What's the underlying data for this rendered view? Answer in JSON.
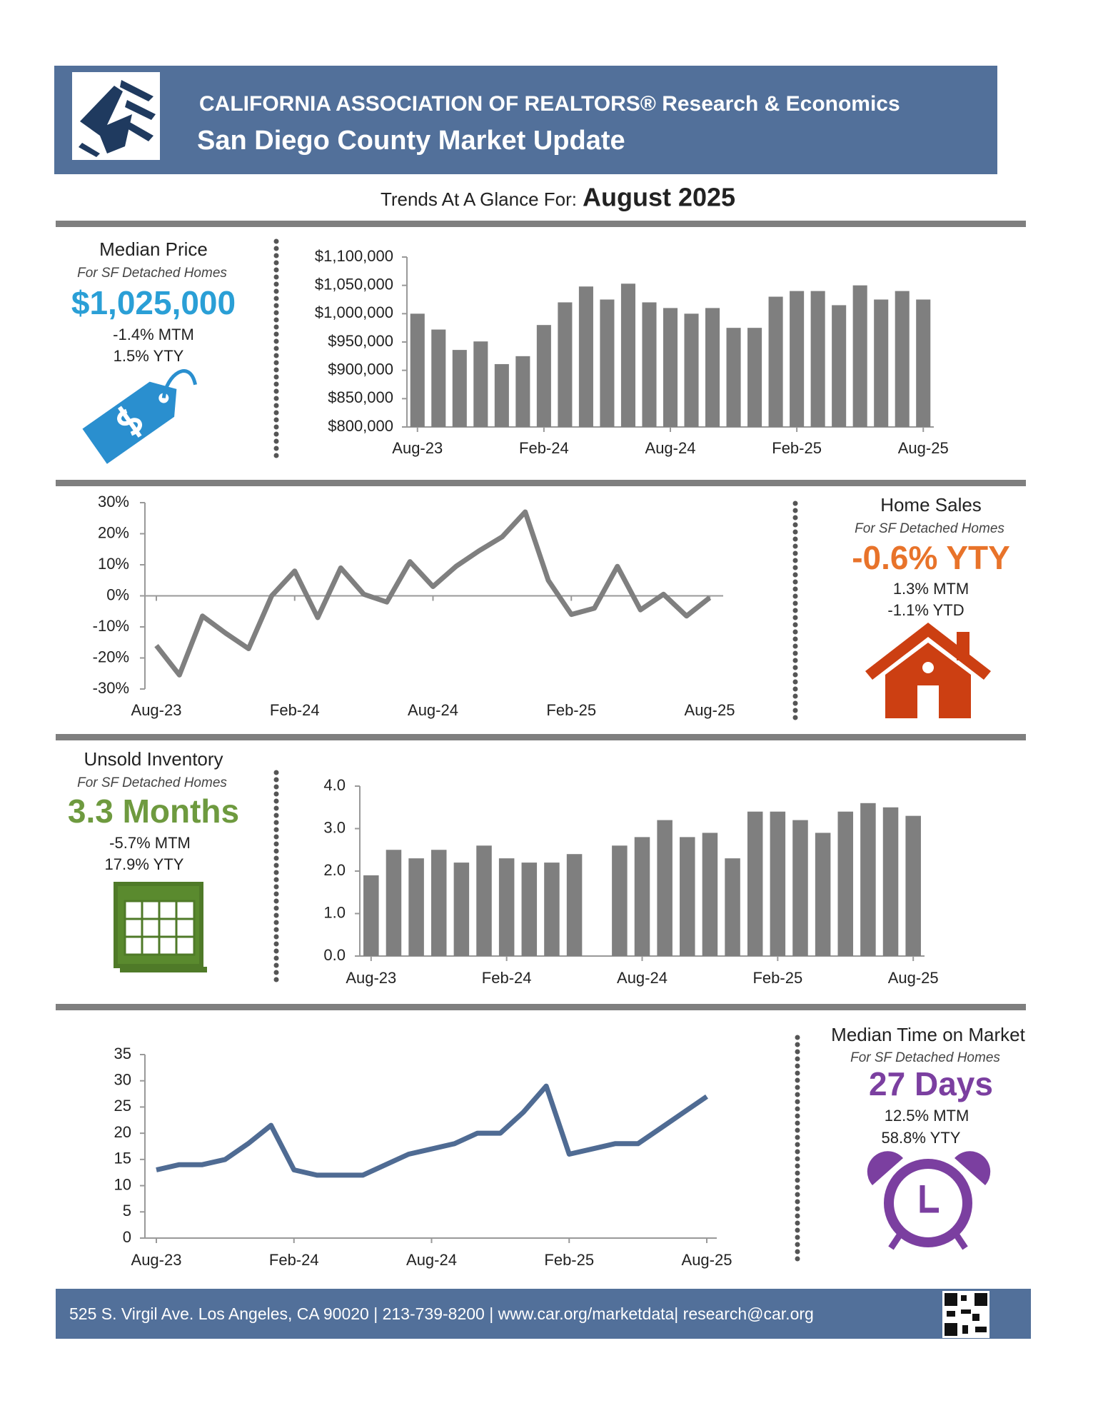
{
  "header": {
    "organization": "CALIFORNIA ASSOCIATION OF REALTORS® Research & Economics",
    "title": "San Diego County Market Update",
    "glance_label": "Trends At A Glance For:",
    "glance_period": "August 2025"
  },
  "panels": [
    {
      "title": "Median Price",
      "subtitle": "For SF Detached Homes",
      "value": "$1,025,000",
      "changes": [
        "-1.4% MTM",
        "1.5% YTY"
      ]
    },
    {
      "title": "Home Sales",
      "subtitle": "For SF Detached Homes",
      "value": "-0.6% YTY",
      "changes": [
        "1.3% MTM",
        "-1.1% YTD"
      ]
    },
    {
      "title": "Unsold Inventory",
      "subtitle": "For SF Detached Homes",
      "value": "3.3 Months",
      "changes": [
        "-5.7% MTM",
        "17.9% YTY"
      ]
    },
    {
      "title": "Median Time on Market",
      "subtitle": "For SF Detached Homes",
      "value": "27 Days",
      "changes": [
        "12.5% MTM",
        "58.8% YTY"
      ]
    }
  ],
  "footer": {
    "contact": "525 S. Virgil Ave. Los Angeles, CA 90020 | 213-739-8200 | www.car.org/marketdata| research@car.org"
  },
  "chart_data": [
    {
      "type": "bar",
      "color": "#7f7f7f",
      "categories": [
        "Aug-23",
        null,
        null,
        null,
        null,
        null,
        "Feb-24",
        null,
        null,
        null,
        null,
        null,
        "Aug-24",
        null,
        null,
        null,
        null,
        null,
        "Feb-25",
        null,
        null,
        null,
        null,
        null,
        "Aug-25"
      ],
      "values": [
        1000000,
        972000,
        936000,
        951000,
        911000,
        925000,
        980000,
        1020000,
        1048000,
        1025000,
        1053000,
        1020000,
        1010000,
        1000000,
        1010000,
        975000,
        975000,
        1030000,
        1040000,
        1040000,
        1015000,
        1050000,
        1025000,
        1040000,
        1025000
      ],
      "ylim": [
        800000,
        1100000
      ],
      "yticks": [
        {
          "value": 800000,
          "label": "$800,000"
        },
        {
          "value": 850000,
          "label": "$850,000"
        },
        {
          "value": 900000,
          "label": "$900,000"
        },
        {
          "value": 950000,
          "label": "$950,000"
        },
        {
          "value": 1000000,
          "label": "$1,000,000"
        },
        {
          "value": 1050000,
          "label": "$1,050,000"
        },
        {
          "value": 1100000,
          "label": "$1,100,000"
        }
      ]
    },
    {
      "type": "line",
      "color": "#7f7f7f",
      "categories": [
        "Aug-23",
        null,
        null,
        null,
        null,
        null,
        "Feb-24",
        null,
        null,
        null,
        null,
        null,
        "Aug-24",
        null,
        null,
        null,
        null,
        null,
        "Feb-25",
        null,
        null,
        null,
        null,
        null,
        "Aug-25"
      ],
      "values": [
        -16,
        -25.5,
        -6.5,
        -12,
        -17,
        0,
        8,
        -7,
        9,
        0.5,
        -2,
        11,
        3,
        9.5,
        14.5,
        19,
        27,
        5,
        -6,
        -4,
        9.5,
        -4.5,
        0.5,
        -6.5,
        -0.6
      ],
      "ylim": [
        -30,
        30
      ],
      "yticks": [
        {
          "value": -30,
          "label": "-30%"
        },
        {
          "value": -20,
          "label": "-20%"
        },
        {
          "value": -10,
          "label": "-10%"
        },
        {
          "value": 0,
          "label": "0%"
        },
        {
          "value": 10,
          "label": "10%"
        },
        {
          "value": 20,
          "label": "20%"
        },
        {
          "value": 30,
          "label": "30%"
        }
      ]
    },
    {
      "type": "bar",
      "color": "#7f7f7f",
      "categories": [
        "Aug-23",
        null,
        null,
        null,
        null,
        null,
        "Feb-24",
        null,
        null,
        null,
        null,
        null,
        "Aug-24",
        null,
        null,
        null,
        null,
        null,
        "Feb-25",
        null,
        null,
        null,
        null,
        null,
        "Aug-25"
      ],
      "values": [
        1.9,
        2.5,
        2.3,
        2.5,
        2.2,
        2.6,
        2.3,
        2.2,
        2.2,
        2.4,
        null,
        2.6,
        2.8,
        3.2,
        2.8,
        2.9,
        2.3,
        3.4,
        3.4,
        3.2,
        2.9,
        3.4,
        3.6,
        3.5,
        3.3
      ],
      "ylim": [
        0,
        4
      ],
      "yticks": [
        {
          "value": 0,
          "label": "0.0"
        },
        {
          "value": 1,
          "label": "1.0"
        },
        {
          "value": 2,
          "label": "2.0"
        },
        {
          "value": 3,
          "label": "3.0"
        },
        {
          "value": 4,
          "label": "4.0"
        }
      ]
    },
    {
      "type": "line",
      "color": "#4f6b93",
      "categories": [
        "Aug-23",
        null,
        null,
        null,
        null,
        null,
        "Feb-24",
        null,
        null,
        null,
        null,
        null,
        "Aug-24",
        null,
        null,
        null,
        null,
        null,
        "Feb-25",
        null,
        null,
        null,
        null,
        null,
        "Aug-25"
      ],
      "values": [
        13,
        14,
        14,
        15,
        18,
        21.5,
        13,
        12,
        12,
        12,
        14,
        16,
        17,
        18,
        20,
        20,
        24,
        29,
        16,
        17,
        18,
        18,
        21,
        24,
        27
      ],
      "ylim": [
        0,
        35
      ],
      "yticks": [
        0,
        5,
        10,
        15,
        20,
        25,
        30,
        35
      ]
    }
  ]
}
